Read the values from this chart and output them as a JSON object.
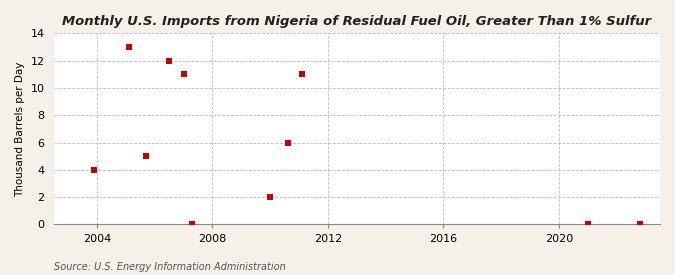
{
  "title": "Monthly U.S. Imports from Nigeria of Residual Fuel Oil, Greater Than 1% Sulfur",
  "ylabel": "Thousand Barrels per Day",
  "source": "Source: U.S. Energy Information Administration",
  "outer_bg": "#f5f0e8",
  "plot_bg": "#ffffff",
  "marker_color": "#cc0000",
  "marker_size": 4,
  "xlim": [
    2002.5,
    2023.5
  ],
  "ylim": [
    0,
    14
  ],
  "yticks": [
    0,
    2,
    4,
    6,
    8,
    10,
    12,
    14
  ],
  "xticks": [
    2004,
    2008,
    2012,
    2016,
    2020
  ],
  "data_x": [
    2003.9,
    2005.1,
    2005.7,
    2006.5,
    2007.0,
    2010.0,
    2010.6,
    2011.1,
    2007.3,
    2021.0,
    2022.8
  ],
  "data_y": [
    4,
    13,
    5,
    12,
    11,
    2,
    6,
    11,
    0,
    0,
    0
  ]
}
